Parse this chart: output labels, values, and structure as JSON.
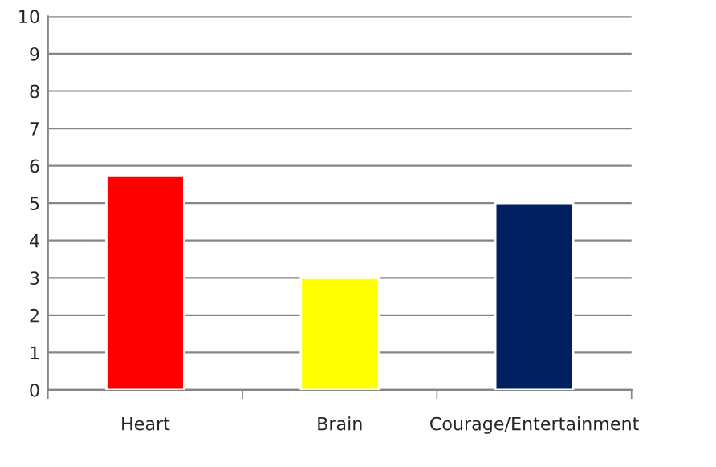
{
  "chart_data": {
    "type": "bar",
    "categories": [
      "Heart",
      "Brain",
      "Courage/Entertainment"
    ],
    "values": [
      5.75,
      3,
      5
    ],
    "colors": [
      "#ff0000",
      "#ffff00",
      "#002060"
    ],
    "ylim": [
      0,
      10
    ],
    "yticks": [
      0,
      1,
      2,
      3,
      4,
      5,
      6,
      7,
      8,
      9,
      10
    ],
    "grid": "y",
    "legend": false
  }
}
